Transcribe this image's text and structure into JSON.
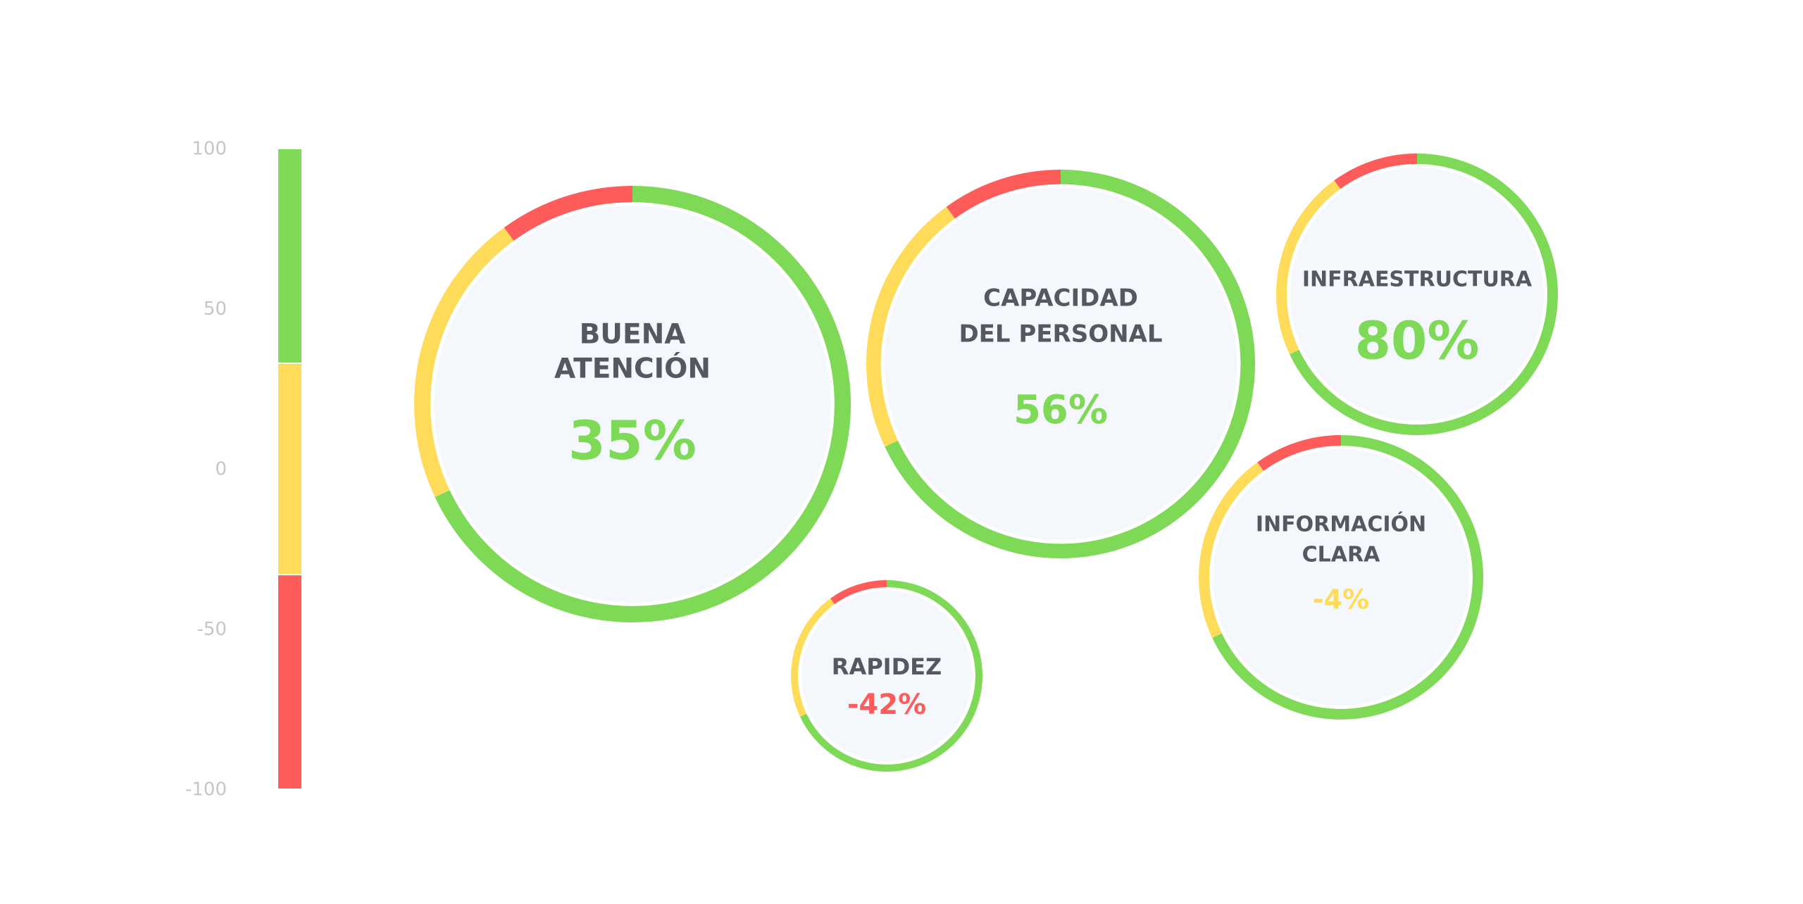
{
  "chart_data": {
    "type": "ring-bubbles",
    "scale": {
      "ylim": [
        -100,
        100
      ],
      "yticks": [
        100,
        50,
        0,
        -50,
        -100
      ]
    },
    "bands": [
      {
        "from": 33,
        "to": 100,
        "color": "#7ed957"
      },
      {
        "from": -33,
        "to": 33,
        "color": "#fedc5a"
      },
      {
        "from": -100,
        "to": -33,
        "color": "#fe5b5b"
      }
    ],
    "ring_segments": [
      {
        "share": 68,
        "color": "#7ed957"
      },
      {
        "share": 22,
        "color": "#fedc5a"
      },
      {
        "share": 10,
        "color": "#fe5b5b"
      }
    ],
    "categories": [
      [
        "BUENA",
        "ATENCIÓN"
      ],
      [
        "CAPACIDAD",
        "DEL PERSONAL"
      ],
      [
        "INFRAESTRUCTURA"
      ],
      [
        "RAPIDEZ"
      ],
      [
        "INFORMACIÓN",
        "CLARA"
      ]
    ],
    "values": [
      35,
      56,
      80,
      -42,
      -4
    ],
    "value_labels": [
      "35%",
      "56%",
      "80%",
      "-42%",
      "-4%"
    ]
  }
}
